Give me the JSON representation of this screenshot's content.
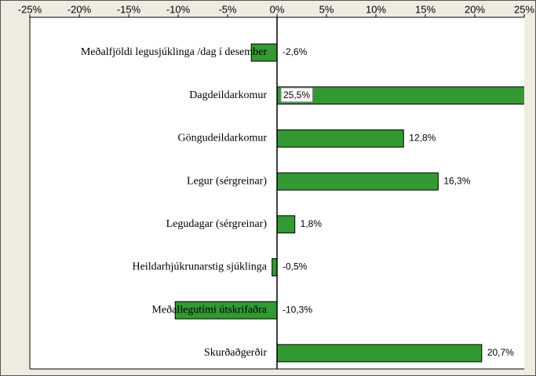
{
  "chart_data": {
    "type": "hbar",
    "categories": [
      "Meðalfjöldi legusjúklinga /dag í desember",
      "Dagdeildarkomur",
      "Göngudeildarkomur",
      "Legur (sérgreinar)",
      "Legudagar (sérgreinar)",
      "Heildarhjúkrunarstig sjúklinga",
      "Meðallegutími útskrifaðra",
      "Skurðaðgerðir"
    ],
    "values": [
      -2.6,
      25.5,
      12.8,
      16.3,
      1.8,
      -0.5,
      -10.3,
      20.7
    ],
    "value_labels": [
      "-2,6%",
      "25,5%",
      "12,8%",
      "16,3%",
      "1,8%",
      "-0,5%",
      "-10,3%",
      "20,7%"
    ],
    "color": "#339933",
    "xlim": [
      -25,
      25
    ],
    "xticks": [
      {
        "value": -25,
        "label": "-25%"
      },
      {
        "value": -20,
        "label": "-20%"
      },
      {
        "value": -15,
        "label": "-15%"
      },
      {
        "value": -10,
        "label": "-10%"
      },
      {
        "value": -5,
        "label": "-5%"
      },
      {
        "value": 0,
        "label": "0%"
      },
      {
        "value": 5,
        "label": "5%"
      },
      {
        "value": 10,
        "label": "10%"
      },
      {
        "value": 15,
        "label": "15%"
      },
      {
        "value": 20,
        "label": "20%"
      },
      {
        "value": 25,
        "label": "25%"
      }
    ]
  }
}
